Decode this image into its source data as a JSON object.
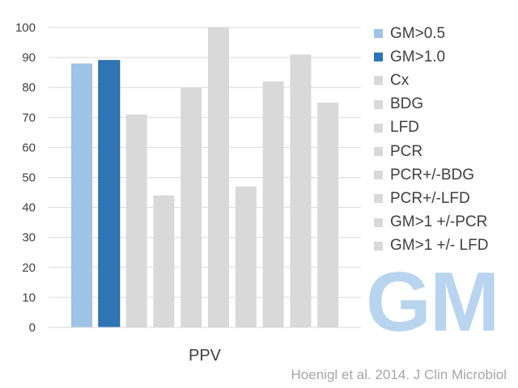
{
  "chart_data": {
    "type": "bar",
    "categories": [
      "PPV"
    ],
    "series": [
      {
        "name": "GM>0.5",
        "values": [
          88
        ],
        "color": "#9dc3e6"
      },
      {
        "name": "GM>1.0",
        "values": [
          89
        ],
        "color": "#2e75b6"
      },
      {
        "name": "Cx",
        "values": [
          71
        ],
        "color": "#d9d9d9"
      },
      {
        "name": "BDG",
        "values": [
          44
        ],
        "color": "#d9d9d9"
      },
      {
        "name": "LFD",
        "values": [
          80
        ],
        "color": "#d9d9d9"
      },
      {
        "name": "PCR",
        "values": [
          100
        ],
        "color": "#d9d9d9"
      },
      {
        "name": "PCR+/-BDG",
        "values": [
          47
        ],
        "color": "#d9d9d9"
      },
      {
        "name": "PCR+/-LFD",
        "values": [
          82
        ],
        "color": "#d9d9d9"
      },
      {
        "name": "GM>1 +/-PCR",
        "values": [
          91
        ],
        "color": "#d9d9d9"
      },
      {
        "name": "GM>1 +/- LFD",
        "values": [
          75
        ],
        "color": "#d9d9d9"
      }
    ],
    "yticks": [
      "0",
      "10",
      "20",
      "30",
      "40",
      "50",
      "60",
      "70",
      "80",
      "90",
      "100"
    ],
    "ylim": [
      0,
      100
    ],
    "grid": true,
    "legend": "right",
    "title": "",
    "xlabel": "",
    "ylabel": ""
  },
  "watermark": "GM",
  "citation": "Hoenigl et al. 2014. J Clin Microbiol"
}
